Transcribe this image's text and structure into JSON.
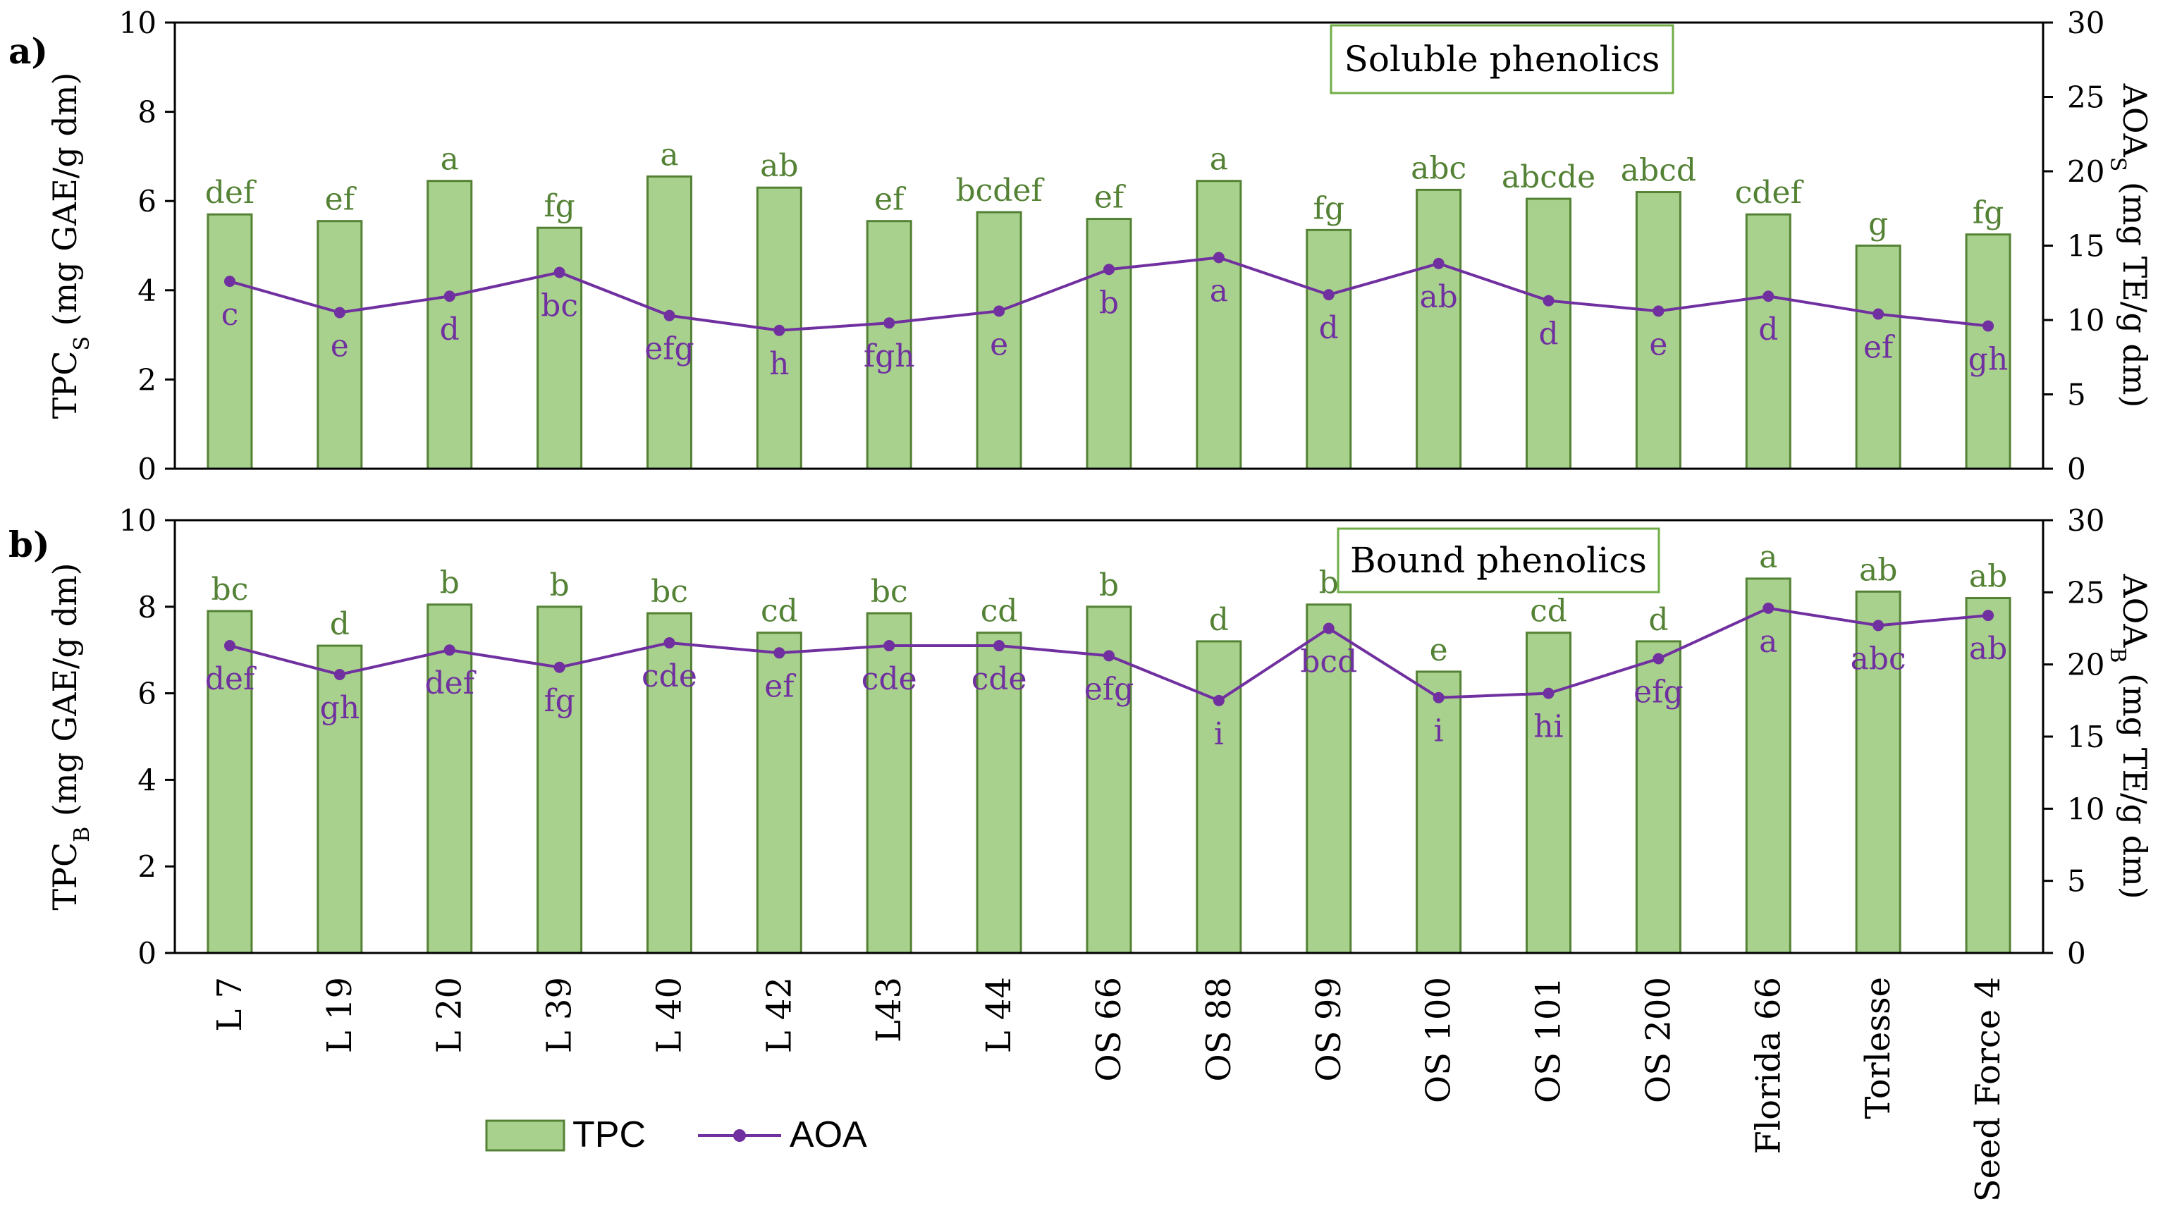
{
  "colors": {
    "bar_fill": "#a9d18e",
    "bar_stroke": "#548235",
    "bar_letters": "#548235",
    "line": "#7030a0",
    "axis": "#000000",
    "frame_box_stroke": "#70ad47"
  },
  "chart_data": [
    {
      "type": "bar+line",
      "panel_label": "a)",
      "title_box": "Soluble phenolics",
      "categories": [
        "L 7",
        "L 19",
        "L 20",
        "L 39",
        "L 40",
        "L 42",
        "L43",
        "L 44",
        "OS 66",
        "OS 88",
        "OS 99",
        "OS 100",
        "OS 101",
        "OS 200",
        "Florida 66",
        "Torlesse",
        "Seed Force 4"
      ],
      "left_axis": {
        "label_main": "TPC",
        "label_sub": "S",
        "label_unit": " (mg GAE/g dm)",
        "ylim": [
          0,
          10
        ],
        "ticks": [
          "0",
          "2",
          "4",
          "6",
          "8",
          "10"
        ]
      },
      "right_axis": {
        "label_main": "AOA",
        "label_sub": "S",
        "label_unit": " (mg TE/g dm)",
        "ylim": [
          0,
          30
        ],
        "ticks": [
          "0",
          "5",
          "10",
          "15",
          "20",
          "25",
          "30"
        ]
      },
      "series": [
        {
          "name": "TPC",
          "kind": "bar",
          "axis": "left",
          "values": [
            5.7,
            5.55,
            6.45,
            5.4,
            6.55,
            6.3,
            5.55,
            5.75,
            5.6,
            6.45,
            5.35,
            6.25,
            6.05,
            6.2,
            5.7,
            5.0,
            5.25
          ],
          "letters": [
            "def",
            "ef",
            "a",
            "fg",
            "a",
            "ab",
            "ef",
            "bcdef",
            "ef",
            "a",
            "fg",
            "abc",
            "abcde",
            "abcd",
            "cdef",
            "g",
            "fg"
          ]
        },
        {
          "name": "AOA",
          "kind": "line",
          "axis": "right",
          "values": [
            12.6,
            10.5,
            11.6,
            13.2,
            10.3,
            9.3,
            9.8,
            10.6,
            13.4,
            14.2,
            11.7,
            13.8,
            11.3,
            10.6,
            11.6,
            10.4,
            9.6
          ],
          "letters": [
            "c",
            "e",
            "d",
            "bc",
            "efg",
            "h",
            "fgh",
            "e",
            "b",
            "a",
            "d",
            "ab",
            "d",
            "e",
            "d",
            "ef",
            "gh"
          ]
        }
      ]
    },
    {
      "type": "bar+line",
      "panel_label": "b)",
      "title_box": "Bound phenolics",
      "categories": [
        "L 7",
        "L 19",
        "L 20",
        "L 39",
        "L 40",
        "L 42",
        "L43",
        "L 44",
        "OS 66",
        "OS 88",
        "OS 99",
        "OS 100",
        "OS 101",
        "OS 200",
        "Florida 66",
        "Torlesse",
        "Seed Force 4"
      ],
      "left_axis": {
        "label_main": "TPC",
        "label_sub": "B",
        "label_unit": " (mg GAE/g dm)",
        "ylim": [
          0,
          10
        ],
        "ticks": [
          "0",
          "2",
          "4",
          "6",
          "8",
          "10"
        ]
      },
      "right_axis": {
        "label_main": "AOA",
        "label_sub": "B",
        "label_unit": " (mg TE/g dm)",
        "ylim": [
          0,
          30
        ],
        "ticks": [
          "0",
          "5",
          "10",
          "15",
          "20",
          "25",
          "30"
        ]
      },
      "series": [
        {
          "name": "TPC",
          "kind": "bar",
          "axis": "left",
          "values": [
            7.9,
            7.1,
            8.05,
            8.0,
            7.85,
            7.4,
            7.85,
            7.4,
            8.0,
            7.2,
            8.05,
            6.5,
            7.4,
            7.2,
            8.65,
            8.35,
            8.2
          ],
          "letters": [
            "bc",
            "d",
            "b",
            "b",
            "bc",
            "cd",
            "bc",
            "cd",
            "b",
            "d",
            "b",
            "e",
            "cd",
            "d",
            "a",
            "ab",
            "ab"
          ]
        },
        {
          "name": "AOA",
          "kind": "line",
          "axis": "right",
          "values": [
            21.3,
            19.3,
            21.0,
            19.8,
            21.5,
            20.8,
            21.3,
            21.3,
            20.6,
            17.5,
            22.5,
            17.7,
            18.0,
            20.4,
            23.9,
            22.7,
            23.4
          ],
          "letters": [
            "def",
            "gh",
            "def",
            "fg",
            "cde",
            "ef",
            "cde",
            "cde",
            "efg",
            "i",
            "bcd",
            "i",
            "hi",
            "efg",
            "a",
            "abc",
            "ab"
          ]
        }
      ]
    }
  ],
  "legend": {
    "items": [
      {
        "name": "TPC",
        "label": "TPC"
      },
      {
        "name": "AOA",
        "label": "AOA"
      }
    ]
  }
}
